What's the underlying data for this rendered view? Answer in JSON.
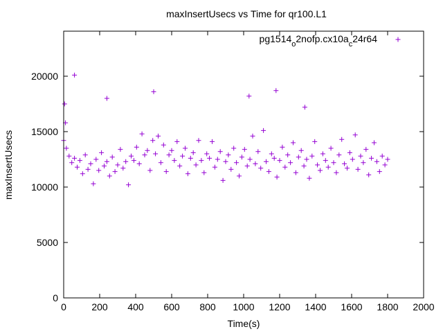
{
  "chart_data": {
    "type": "scatter",
    "title": "maxInsertUsecs vs Time for qr100.L1",
    "xlabel": "Time(s)",
    "ylabel": "maxInsertUsecs",
    "xlim": [
      0,
      2000
    ],
    "ylim": [
      0,
      22000
    ],
    "xticks": [
      "0",
      "200",
      "400",
      "600",
      "800",
      "1000",
      "1200",
      "1400",
      "1600",
      "1800",
      "2000"
    ],
    "yticks": [
      "0",
      "5000",
      "10000",
      "15000",
      "20000"
    ],
    "xtick_values": [
      0,
      200,
      400,
      600,
      800,
      1000,
      1200,
      1400,
      1600,
      1800,
      2000
    ],
    "ytick_values": [
      0,
      5000,
      10000,
      15000,
      20000
    ],
    "grid": false,
    "legend_position": "top-right",
    "series": [
      {
        "name": "pg1514_o2nofp.cx10a_c24r64",
        "color": "#9400D3",
        "marker": "plus",
        "x": [
          0,
          15,
          30,
          45,
          60,
          75,
          90,
          105,
          120,
          135,
          150,
          165,
          180,
          195,
          210,
          225,
          240,
          255,
          270,
          285,
          300,
          315,
          330,
          345,
          360,
          375,
          390,
          405,
          420,
          435,
          450,
          465,
          480,
          495,
          510,
          525,
          540,
          555,
          570,
          585,
          600,
          615,
          630,
          645,
          660,
          675,
          690,
          705,
          720,
          735,
          750,
          765,
          780,
          795,
          810,
          825,
          840,
          855,
          870,
          885,
          900,
          915,
          930,
          945,
          960,
          975,
          990,
          1005,
          1020,
          1035,
          1050,
          1065,
          1080,
          1095,
          1110,
          1125,
          1140,
          1155,
          1170,
          1185,
          1200,
          1215,
          1230,
          1245,
          1260,
          1275,
          1290,
          1305,
          1320,
          1335,
          1350,
          1365,
          1380,
          1395,
          1410,
          1425,
          1440,
          1455,
          1470,
          1485,
          1500,
          1515,
          1530,
          1545,
          1560,
          1575,
          1590,
          1605,
          1620,
          1635,
          1650,
          1665,
          1680,
          1695,
          1710,
          1725,
          1740,
          1755,
          1770,
          1785,
          1800,
          5,
          10,
          60,
          240,
          500,
          1030,
          1180,
          1340
        ],
        "y": [
          14200,
          13500,
          12800,
          12200,
          12600,
          11800,
          12400,
          11200,
          12900,
          11600,
          12100,
          10300,
          12500,
          11500,
          13100,
          11900,
          12300,
          11000,
          12700,
          11400,
          12000,
          13400,
          11700,
          12300,
          10200,
          12800,
          12400,
          13600,
          12100,
          14800,
          12900,
          13300,
          11500,
          14200,
          13000,
          14600,
          12200,
          13800,
          11400,
          12900,
          13300,
          12400,
          14100,
          11900,
          12800,
          13500,
          11200,
          12600,
          13100,
          12000,
          14200,
          12400,
          11300,
          13000,
          12600,
          14100,
          11800,
          12500,
          13200,
          10600,
          12300,
          12900,
          11600,
          13500,
          12200,
          11000,
          12700,
          13400,
          11900,
          12500,
          14600,
          12100,
          13200,
          11700,
          15100,
          12300,
          11400,
          13000,
          12600,
          10900,
          12400,
          13600,
          11800,
          12900,
          12200,
          14000,
          11300,
          12700,
          13300,
          11900,
          12500,
          10800,
          12800,
          14100,
          12000,
          11500,
          13000,
          12400,
          11800,
          13500,
          12200,
          11300,
          12900,
          14300,
          12100,
          11700,
          13100,
          12500,
          14700,
          11600,
          12800,
          12200,
          13400,
          11100,
          12600,
          14000,
          12300,
          11400,
          12800,
          12000,
          12500,
          17500,
          15800,
          20100,
          18000,
          18600,
          18200,
          18700,
          17200
        ]
      }
    ]
  }
}
